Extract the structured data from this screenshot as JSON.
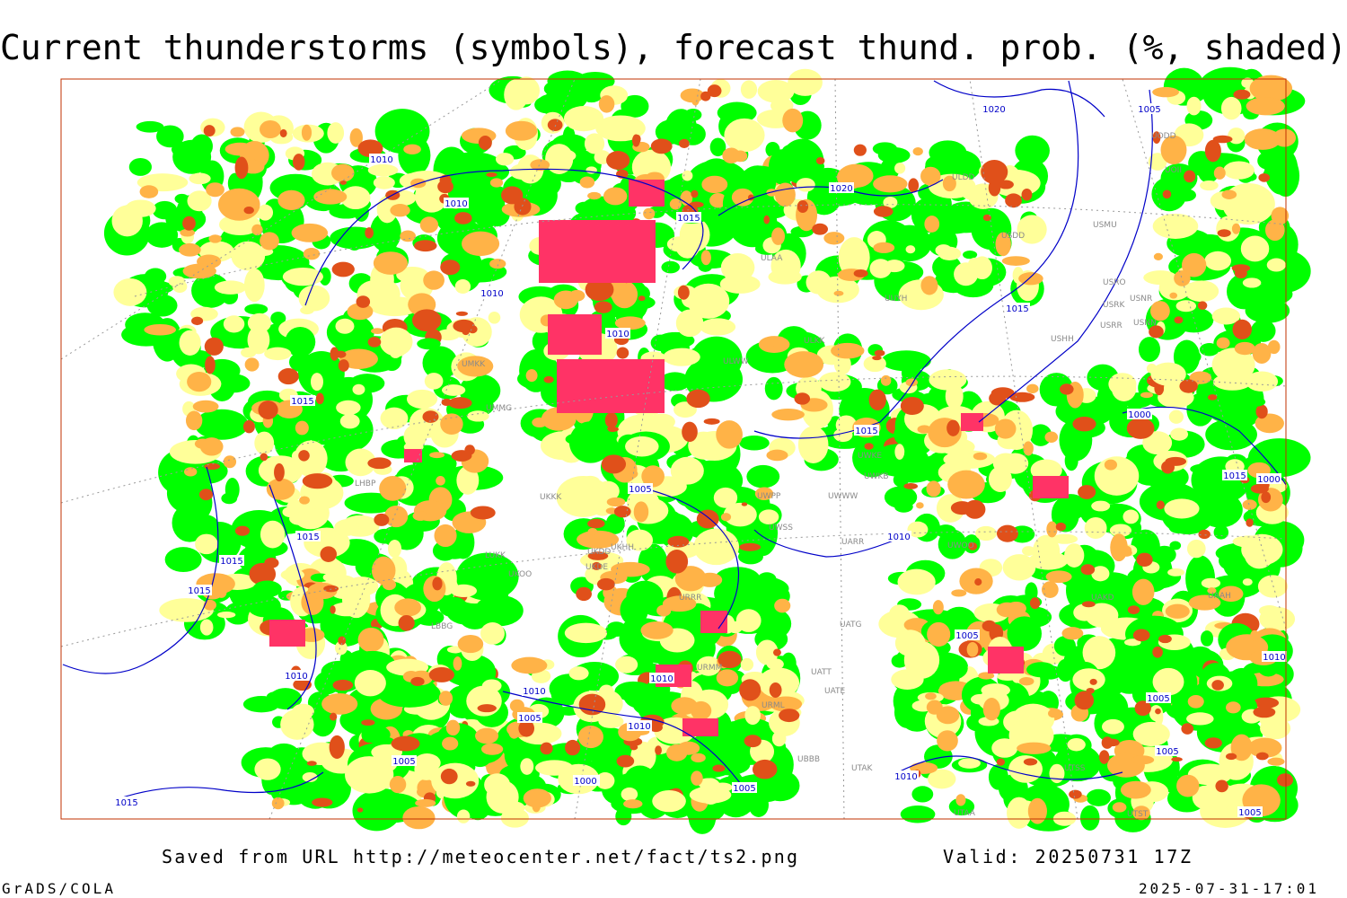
{
  "header": {
    "title": "Current thunderstorms (symbols), forecast thund. prob. (%, shaded)"
  },
  "map": {
    "isobar_labels": [
      1010,
      1010,
      1010,
      1015,
      1020,
      1015,
      1020,
      1005,
      1015,
      1010,
      1015,
      1015,
      1015,
      1015,
      1005,
      1010,
      1015,
      1010,
      1000,
      1000,
      1000,
      1005,
      1010,
      1010,
      1010,
      1005,
      1010,
      1005,
      1000,
      1005,
      1005,
      1005,
      1005,
      1010,
      1015
    ],
    "stations": [
      "ULDD",
      "USDD",
      "USMU",
      "ULAA",
      "UUYH",
      "ULKK",
      "ULWW",
      "USHH",
      "USRR",
      "USNN",
      "USRK",
      "USRO",
      "USNR",
      "UODD",
      "UOII",
      "UWKE",
      "UWKB",
      "UWWW",
      "UWPP",
      "UWSS",
      "UARR",
      "UATG",
      "UATE",
      "UATT",
      "UTAK",
      "UBBB",
      "URML",
      "URMM",
      "URRR",
      "UKKK",
      "UKDD",
      "UKHH",
      "UKDE",
      "UKOO",
      "LUKK",
      "UMMG",
      "UMKK",
      "LHBP",
      "LBBG",
      "UTAA",
      "UTST",
      "UAAH",
      "UTSS",
      "UAKD",
      "UWOO"
    ]
  },
  "footer": {
    "source": "Saved from URL http://meteocenter.net/fact/ts2.png",
    "valid": "Valid: 20250731 17Z",
    "software": "GrADS/COLA",
    "timestamp": "2025-07-31-17:01"
  }
}
